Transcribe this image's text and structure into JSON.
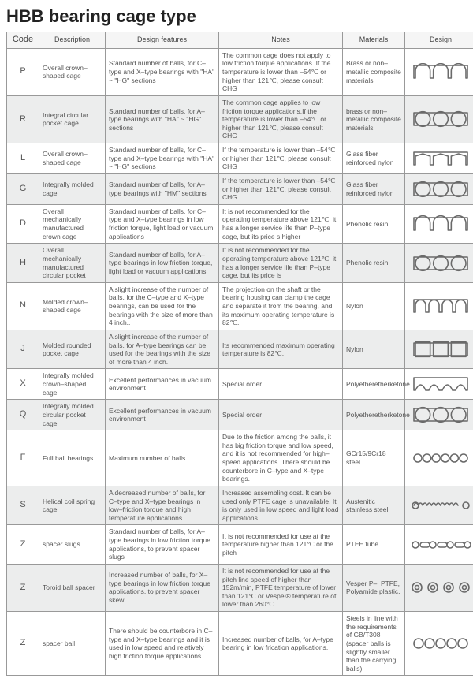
{
  "title": "HBB bearing cage type",
  "columns": [
    "Code",
    "Description",
    "Design features",
    "Notes",
    "Materials",
    "Design"
  ],
  "rows": [
    {
      "code": "P",
      "desc": "Overall crown–shaped cage",
      "feat": "Standard number of balls, for C–type and X–type bearings with \"HA\" ~ \"HG\" sections",
      "notes": "The common cage does not apply to low friction torque applications. If the temperature is lower than –54℃ or higher than 121℃, please consult CHG",
      "mat": "Brass or non–metallic composite materials",
      "alt": false,
      "design": "crown-3"
    },
    {
      "code": "R",
      "desc": "Integral circular pocket cage",
      "feat": "Standard number of balls, for A–type bearings with \"HA\" ~ \"HG\" sections",
      "notes": "The common cage applies to low friction torque applications.If the temperature is lower than –54℃ or higher than 121℃, please consult CHG",
      "mat": "brass or non–metallic composite materials",
      "alt": true,
      "design": "ring-3-frame"
    },
    {
      "code": "L",
      "desc": "Overall crown–shaped cage",
      "feat": "Standard number of balls, for C–type and X–type bearings with \"HA\" ~ \"HG\" sections",
      "notes": "If the temperature is lower than –54℃ or higher than 121℃, please consult CHG",
      "mat": "Glass fiber reinforced nylon",
      "alt": false,
      "design": "crown-3-pointed"
    },
    {
      "code": "G",
      "desc": "Integrally molded cage",
      "feat": "Standard number of balls, for A–type bearings with \"HM\" sections",
      "notes": "If the temperature is lower than –54℃ or higher than 121℃, please consult CHG",
      "mat": "Glass fiber reinforced nylon",
      "alt": true,
      "design": "ring-3-frame-pointed"
    },
    {
      "code": "D",
      "desc": "Overall mechanically manufactured crown cage",
      "feat": "Standard number of balls, for C–type and X–type bearings in low friction torque, light load or vacuum applications",
      "notes": "It is not recommended for the operating temperature above 121℃, it has a longer service life than P–type cage, but its price s higher",
      "mat": "Phenolic resin",
      "alt": false,
      "design": "crown-3"
    },
    {
      "code": "H",
      "desc": "Overall mechanically manufactured circular pocket",
      "feat": "Standard number of balls, for A–type bearings in low friction torque, light load or vacuum applications",
      "notes": "It is not recommended for the operating temperature above 121℃, it has a longer service life than P–type cage, but its price is",
      "mat": "Phenolic resin",
      "alt": true,
      "design": "ring-3-frame"
    },
    {
      "code": "N",
      "desc": "Molded crown–shaped cage",
      "feat": "A slight increase of the number of balls, for the C–type and X–type bearings, can be used for the bearings with the size of more than 4 inch..",
      "notes": "The projection on the shaft or the bearing housing can clamp the cage and separate it from the bearing, and its maximum operating temperature is 82℃.",
      "mat": "Nylon",
      "alt": false,
      "design": "crown-4-small"
    },
    {
      "code": "J",
      "desc": "Molded rounded pocket cage",
      "feat": "A slight increase of the number of balls, for A–type bearings can be used for the bearings with the size of more than 4 inch.",
      "notes": "Its recommended maximum operating temperature is 82℃.",
      "mat": "Nylon",
      "alt": true,
      "design": "ring-3-square-pointed"
    },
    {
      "code": "X",
      "desc": "Integrally molded crown–shaped cage",
      "feat": "Excellent performances in vacuum environment",
      "notes": "Special order",
      "mat": "Polyetheretherketone",
      "alt": false,
      "design": "crown-wave"
    },
    {
      "code": "Q",
      "desc": "Integrally molded circular pocket cage",
      "feat": "Excellent performances in vacuum environment",
      "notes": "Special order",
      "mat": "Polyetheretherketone",
      "alt": true,
      "design": "ring-3-frame"
    },
    {
      "code": "F",
      "desc": "Full ball bearings",
      "feat": "Maximum number of balls",
      "notes": "Due to the friction among the balls, it has big friction torque and low speed, and it is not recommended for high–speed applications. There should be counterbore in C–type and X–type bearings.",
      "mat": "GCr15/9Cr18 steel",
      "alt": false,
      "design": "circles-6"
    },
    {
      "code": "S",
      "desc": "Helical coil spring cage",
      "feat": "A decreased number of balls, for C–type and X–type bearings in low–friction torque and high temperature applications.",
      "notes": "Increased assembling cost. It can be used only PTFE cage is unavailable. It is only used in low speed and light load applications.",
      "mat": "Austenitic stainless steel",
      "alt": true,
      "design": "spring"
    },
    {
      "code": "Z",
      "desc": "spacer slugs",
      "feat": "Standard number of balls, for A–type bearings in low friction torque applications, to prevent spacer slugs",
      "notes": "It is not recommended for use at the temperature higher than 121℃ or the pitch",
      "mat": "PTEE tube",
      "alt": false,
      "design": "capsules"
    },
    {
      "code": "Z",
      "desc": "Toroid ball spacer",
      "feat": "Increased number of balls, for X–type bearings in low friction torque applications, to prevent spacer skew.",
      "notes": "It is not recommended for use at the pitch line speed of higher than 152m/min, PTFE temperature of lower than 121℃ or Vespel® temperature of lower than 260℃.",
      "mat": "Vesper P–I PTFE, Polyamide plastic.",
      "alt": true,
      "design": "donuts"
    },
    {
      "code": "Z",
      "desc": "spacer ball",
      "feat": "There should be counterbore in C–type and X–type bearings and it is used in low speed and relatively high friction torque applications.",
      "notes": "Increased number of balls, for A–type bearing in low frication applications.",
      "mat": "Steels in line with the requirements of GB/T308 (spacer balls is slightly smaller than the carrying balls)",
      "alt": false,
      "design": "circles-5"
    }
  ],
  "svg": {
    "stroke": "#6a6a6a",
    "strokeWidth": 1.6,
    "w": 76,
    "h": 28
  }
}
